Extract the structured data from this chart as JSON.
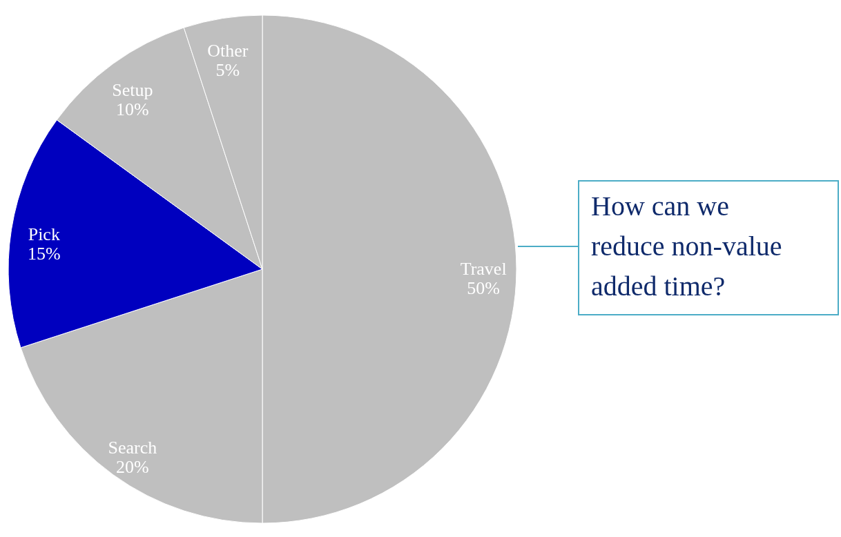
{
  "chart_data": {
    "type": "pie",
    "categories": [
      "Travel",
      "Search",
      "Pick",
      "Setup",
      "Other"
    ],
    "values": [
      50,
      20,
      15,
      10,
      5
    ],
    "value_labels": [
      "50%",
      "20%",
      "15%",
      "10%",
      "5%"
    ],
    "colors": [
      "#bfbfbf",
      "#bfbfbf",
      "#0000bf",
      "#bfbfbf",
      "#bfbfbf"
    ],
    "annotations": [
      "How can we\nreduce non-value\nadded time?"
    ]
  }
}
